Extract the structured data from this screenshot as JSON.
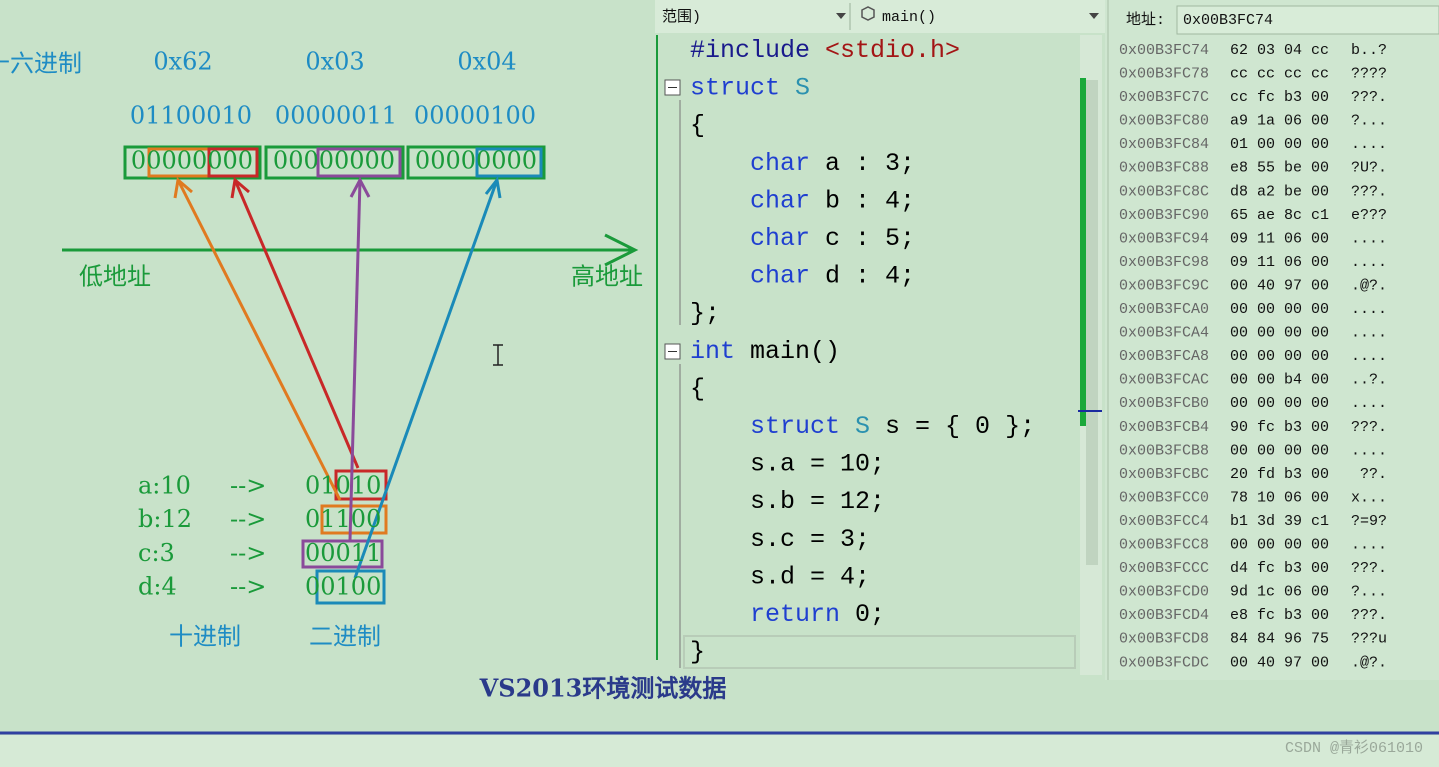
{
  "diagram": {
    "hex_label": "十六进制",
    "hex": [
      "0x62",
      "0x03",
      "0x04"
    ],
    "binary": [
      "01100010",
      "00000011",
      "00000100"
    ],
    "memory_boxes": [
      "00000000",
      "00000000",
      "00000000"
    ],
    "low_address": "低地址",
    "high_address": "高地址",
    "fields": [
      [
        "a:10",
        "-->",
        "01010"
      ],
      [
        "b:12",
        "-->",
        "01100"
      ],
      [
        "c:3",
        "-->",
        "00011"
      ],
      [
        "d:4",
        "-->",
        "00100"
      ]
    ],
    "decimal_label": "十进制",
    "binary_label": "二进制",
    "caption": "VS2013环境测试数据"
  },
  "editor": {
    "scope": "范围)",
    "function": "main()",
    "lines": [
      [
        {
          "text": "#include ",
          "color": "#1a1a8c"
        },
        {
          "text": "<stdio.h>",
          "color": "#a31515"
        }
      ],
      [
        {
          "text": "struct ",
          "color": "#1f3fd0"
        },
        {
          "text": "S",
          "color": "#2b91af"
        }
      ],
      [
        {
          "text": "{",
          "color": "#000000"
        }
      ],
      [
        {
          "text": "    char ",
          "color": "#1f3fd0"
        },
        {
          "text": "a : 3;",
          "color": "#000000"
        }
      ],
      [
        {
          "text": "    char ",
          "color": "#1f3fd0"
        },
        {
          "text": "b : 4;",
          "color": "#000000"
        }
      ],
      [
        {
          "text": "    char ",
          "color": "#1f3fd0"
        },
        {
          "text": "c : 5;",
          "color": "#000000"
        }
      ],
      [
        {
          "text": "    char ",
          "color": "#1f3fd0"
        },
        {
          "text": "d : 4;",
          "color": "#000000"
        }
      ],
      [
        {
          "text": "};",
          "color": "#000000"
        }
      ],
      [
        {
          "text": "int ",
          "color": "#1f3fd0"
        },
        {
          "text": "main()",
          "color": "#000000"
        }
      ],
      [
        {
          "text": "{",
          "color": "#000000"
        }
      ],
      [
        {
          "text": "    struct ",
          "color": "#1f3fd0"
        },
        {
          "text": "S ",
          "color": "#2b91af"
        },
        {
          "text": "s = { 0 };",
          "color": "#000000"
        }
      ],
      [
        {
          "text": "    s.a = 10;",
          "color": "#000000"
        }
      ],
      [
        {
          "text": "    s.b = 12;",
          "color": "#000000"
        }
      ],
      [
        {
          "text": "    s.c = 3;",
          "color": "#000000"
        }
      ],
      [
        {
          "text": "    s.d = 4;",
          "color": "#000000"
        }
      ],
      [
        {
          "text": "    return ",
          "color": "#1f3fd0"
        },
        {
          "text": "0;",
          "color": "#000000"
        }
      ],
      [
        {
          "text": "}",
          "color": "#000000"
        }
      ]
    ]
  },
  "memory": {
    "address_label": "地址:",
    "address": "0x00B3FC74",
    "rows": [
      [
        "0x00B3FC74",
        "62 03 04 cc",
        "b..?"
      ],
      [
        "0x00B3FC78",
        "cc cc cc cc",
        "????"
      ],
      [
        "0x00B3FC7C",
        "cc fc b3 00",
        "???."
      ],
      [
        "0x00B3FC80",
        "a9 1a 06 00",
        "?..."
      ],
      [
        "0x00B3FC84",
        "01 00 00 00",
        "...."
      ],
      [
        "0x00B3FC88",
        "e8 55 be 00",
        "?U?."
      ],
      [
        "0x00B3FC8C",
        "d8 a2 be 00",
        "???."
      ],
      [
        "0x00B3FC90",
        "65 ae 8c c1",
        "e???"
      ],
      [
        "0x00B3FC94",
        "09 11 06 00",
        "...."
      ],
      [
        "0x00B3FC98",
        "09 11 06 00",
        "...."
      ],
      [
        "0x00B3FC9C",
        "00 40 97 00",
        ".@?."
      ],
      [
        "0x00B3FCA0",
        "00 00 00 00",
        "...."
      ],
      [
        "0x00B3FCA4",
        "00 00 00 00",
        "...."
      ],
      [
        "0x00B3FCA8",
        "00 00 00 00",
        "...."
      ],
      [
        "0x00B3FCAC",
        "00 00 b4 00",
        "..?."
      ],
      [
        "0x00B3FCB0",
        "00 00 00 00",
        "...."
      ],
      [
        "0x00B3FCB4",
        "90 fc b3 00",
        "???."
      ],
      [
        "0x00B3FCB8",
        "00 00 00 00",
        "...."
      ],
      [
        "0x00B3FCBC",
        "20 fd b3 00",
        " ??."
      ],
      [
        "0x00B3FCC0",
        "78 10 06 00",
        "x..."
      ],
      [
        "0x00B3FCC4",
        "b1 3d 39 c1",
        "?=9?"
      ],
      [
        "0x00B3FCC8",
        "00 00 00 00",
        "...."
      ],
      [
        "0x00B3FCCC",
        "d4 fc b3 00",
        "???."
      ],
      [
        "0x00B3FCD0",
        "9d 1c 06 00",
        "?..."
      ],
      [
        "0x00B3FCD4",
        "e8 fc b3 00",
        "???."
      ],
      [
        "0x00B3FCD8",
        "84 84 96 75",
        "???u"
      ],
      [
        "0x00B3FCDC",
        "00 40 97 00",
        ".@?."
      ]
    ]
  },
  "watermark": "CSDN @青衫061010"
}
